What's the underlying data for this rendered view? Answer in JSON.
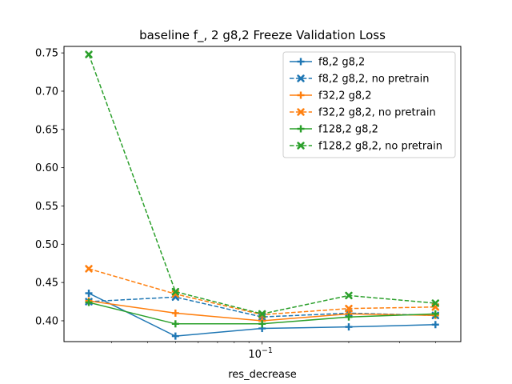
{
  "chart_data": {
    "type": "line",
    "title": "baseline f_, 2 g8,2 Freeze Validation Loss",
    "xlabel": "res_decrease",
    "ylabel": "",
    "xscale": "log",
    "x": [
      0.025,
      0.05,
      0.1,
      0.2,
      0.4
    ],
    "xlim": [
      0.0205,
      0.49
    ],
    "ylim": [
      0.3728,
      0.7585
    ],
    "yticks": [
      0.4,
      0.45,
      0.5,
      0.55,
      0.6,
      0.65,
      0.7,
      0.75
    ],
    "ytick_labels": [
      "0.40",
      "0.45",
      "0.50",
      "0.55",
      "0.60",
      "0.65",
      "0.70",
      "0.75"
    ],
    "xticks_major": [
      0.1
    ],
    "xtick_labels": [
      {
        "base": "10",
        "exp": "−1"
      }
    ],
    "legend_position": "top-right",
    "series": [
      {
        "name": "f8,2 g8,2",
        "color": "#1f77b4",
        "dashed": false,
        "marker": "plus",
        "values": [
          0.436,
          0.38,
          0.39,
          0.392,
          0.395
        ]
      },
      {
        "name": "f8,2 g8,2, no pretrain",
        "color": "#1f77b4",
        "dashed": true,
        "marker": "x",
        "values": [
          0.425,
          0.431,
          0.405,
          0.41,
          0.407
        ]
      },
      {
        "name": "f32,2 g8,2",
        "color": "#ff7f0e",
        "dashed": false,
        "marker": "plus",
        "values": [
          0.426,
          0.41,
          0.4,
          0.409,
          0.407
        ]
      },
      {
        "name": "f32,2 g8,2, no pretrain",
        "color": "#ff7f0e",
        "dashed": true,
        "marker": "x",
        "values": [
          0.468,
          0.435,
          0.408,
          0.416,
          0.418
        ]
      },
      {
        "name": "f128,2 g8,2",
        "color": "#2ca02c",
        "dashed": false,
        "marker": "plus",
        "values": [
          0.424,
          0.396,
          0.396,
          0.405,
          0.409
        ]
      },
      {
        "name": "f128,2 g8,2, no pretrain",
        "color": "#2ca02c",
        "dashed": true,
        "marker": "x",
        "values": [
          0.748,
          0.438,
          0.409,
          0.433,
          0.423
        ]
      }
    ]
  }
}
